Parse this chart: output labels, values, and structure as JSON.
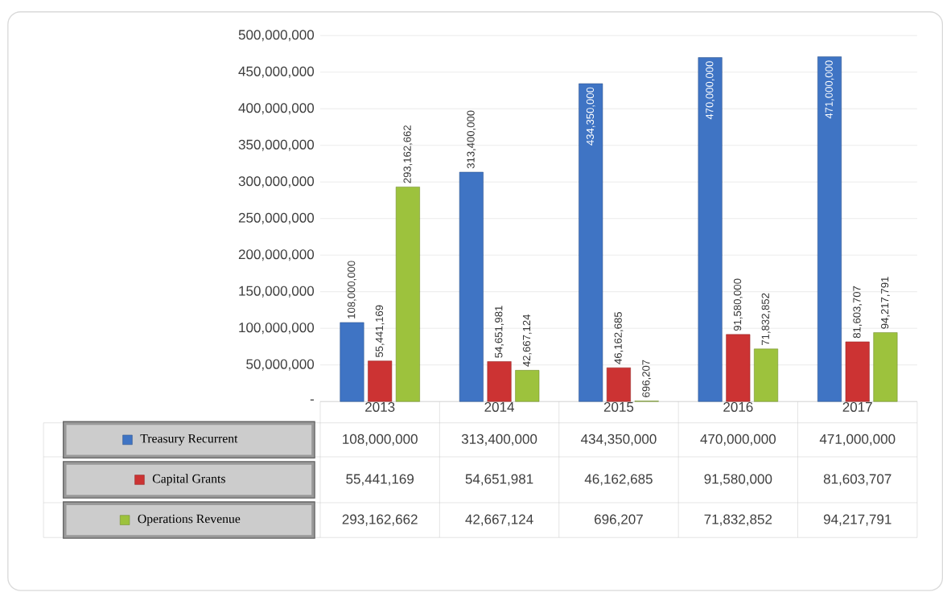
{
  "chart_data": {
    "type": "bar",
    "categories": [
      "2013",
      "2014",
      "2015",
      "2016",
      "2017"
    ],
    "series": [
      {
        "name": "Treasury Recurrent",
        "color": "#3f74c4",
        "values": [
          108000000,
          313400000,
          434350000,
          470000000,
          471000000
        ],
        "value_labels": [
          "108,000,000",
          "313,400,000",
          "434,350,000",
          "470,000,000",
          "471,000,000"
        ]
      },
      {
        "name": "Capital Grants",
        "color": "#cc3333",
        "values": [
          55441169,
          54651981,
          46162685,
          91580000,
          81603707
        ],
        "value_labels": [
          "55,441,169",
          "54,651,981",
          "46,162,685",
          "91,580,000",
          "81,603,707"
        ]
      },
      {
        "name": "Operations Revenue",
        "color": "#9dc23d",
        "values": [
          293162662,
          42667124,
          696207,
          71832852,
          94217791
        ],
        "value_labels": [
          "293,162,662",
          "42,667,124",
          "696,207",
          "71,832,852",
          "94,217,791"
        ]
      }
    ],
    "ylim": [
      0,
      500000000
    ],
    "yticks": [
      {
        "value": 0,
        "label": "-"
      },
      {
        "value": 50000000,
        "label": "50,000,000"
      },
      {
        "value": 100000000,
        "label": "100,000,000"
      },
      {
        "value": 150000000,
        "label": "150,000,000"
      },
      {
        "value": 200000000,
        "label": "200,000,000"
      },
      {
        "value": 250000000,
        "label": "250,000,000"
      },
      {
        "value": 300000000,
        "label": "300,000,000"
      },
      {
        "value": 350000000,
        "label": "350,000,000"
      },
      {
        "value": 400000000,
        "label": "400,000,000"
      },
      {
        "value": 450000000,
        "label": "450,000,000"
      },
      {
        "value": 500000000,
        "label": "500,000,000"
      }
    ],
    "grid": "y",
    "legend": "bottom"
  }
}
